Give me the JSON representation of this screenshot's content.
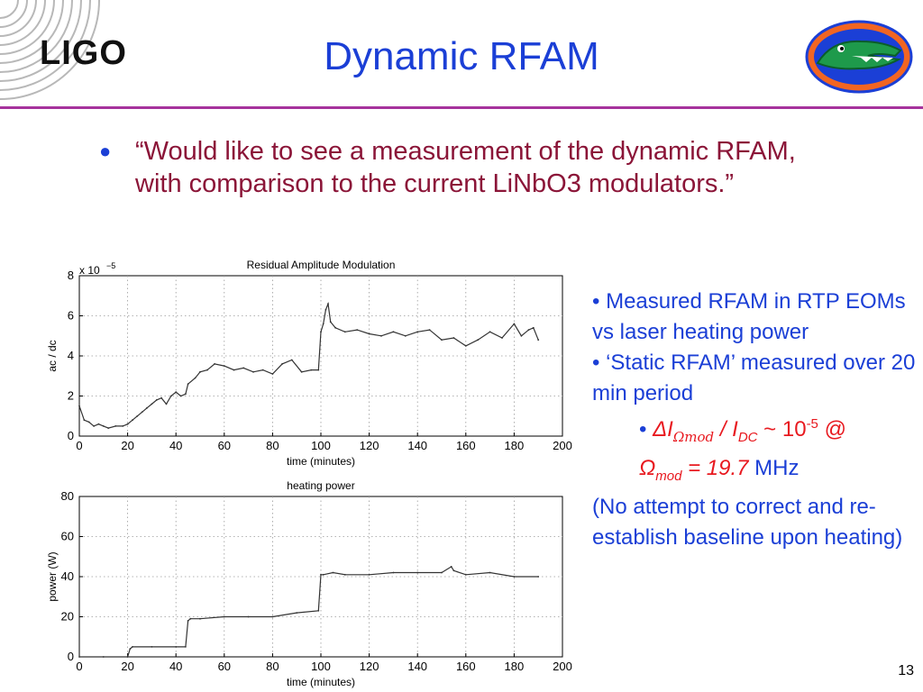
{
  "header": {
    "logo_text": "LIGO",
    "title": "Dynamic RFAM",
    "logo_icon": "ligo-rings-icon",
    "mascot_icon": "gator-logo-icon"
  },
  "main_bullet": "“Would like to see a measurement of the dynamic RFAM, with comparison to the current LiNbO3 modulators.”",
  "side_notes": {
    "item1": "• Measured RFAM in RTP EOMs vs laser heating power",
    "item2": "• ‘Static RFAM’ measured over 20 min period",
    "formula": {
      "bullet": "•",
      "delta_i": "ΔI",
      "omega_mod_sub": "Ωmod",
      "slash": " / ",
      "i": "I",
      "dc_sub": "DC",
      "tilde_ten": " ~ 10",
      "exp": "-5",
      "at": " @",
      "omega": "Ω",
      "mod_sub": "mod",
      "equals": " = 19.7",
      "mhz": " MHz"
    },
    "item3": "(No attempt to correct and re-establish baseline upon heating)"
  },
  "page_number": "13",
  "colors": {
    "title_blue": "#1b3fd6",
    "bullet_maroon": "#8b1538",
    "rule_purple": "#a6339d",
    "formula_red": "#e8191f"
  },
  "chart_data": [
    {
      "type": "line",
      "title": "Residual Amplitude Modulation",
      "xlabel": "time (minutes)",
      "ylabel": "ac / dc",
      "multiplier": "x 10",
      "multiplier_exp": "−5",
      "xlim": [
        0,
        200
      ],
      "ylim": [
        0,
        8
      ],
      "xticks": [
        "0",
        "20",
        "40",
        "60",
        "80",
        "100",
        "120",
        "140",
        "160",
        "180",
        "200"
      ],
      "yticks": [
        "0",
        "2",
        "4",
        "6",
        "8"
      ],
      "grid": true,
      "x": [
        0,
        2,
        4,
        6,
        8,
        10,
        12,
        15,
        18,
        20,
        22,
        24,
        26,
        28,
        30,
        32,
        34,
        36,
        38,
        40,
        42,
        44,
        45,
        48,
        50,
        53,
        56,
        60,
        64,
        68,
        72,
        76,
        80,
        84,
        88,
        92,
        96,
        99,
        100,
        101,
        102,
        103,
        104,
        106,
        110,
        115,
        120,
        125,
        130,
        135,
        140,
        145,
        150,
        155,
        160,
        165,
        170,
        175,
        180,
        183,
        186,
        188,
        190
      ],
      "y": [
        1.5,
        0.8,
        0.7,
        0.5,
        0.6,
        0.5,
        0.4,
        0.5,
        0.5,
        0.6,
        0.8,
        1.0,
        1.2,
        1.4,
        1.6,
        1.8,
        1.9,
        1.6,
        2.0,
        2.2,
        2.0,
        2.1,
        2.6,
        2.9,
        3.2,
        3.3,
        3.6,
        3.5,
        3.3,
        3.4,
        3.2,
        3.3,
        3.1,
        3.6,
        3.8,
        3.2,
        3.3,
        3.3,
        5.2,
        5.6,
        6.3,
        6.6,
        5.7,
        5.4,
        5.2,
        5.3,
        5.1,
        5.0,
        5.2,
        5.0,
        5.2,
        5.3,
        4.8,
        4.9,
        4.5,
        4.8,
        5.2,
        4.9,
        5.6,
        5.0,
        5.3,
        5.4,
        4.8
      ]
    },
    {
      "type": "line",
      "title": "heating power",
      "xlabel": "time (minutes)",
      "ylabel": "power (W)",
      "xlim": [
        0,
        200
      ],
      "ylim": [
        0,
        80
      ],
      "xticks": [
        "0",
        "20",
        "40",
        "60",
        "80",
        "100",
        "120",
        "140",
        "160",
        "180",
        "200"
      ],
      "yticks": [
        "0",
        "20",
        "40",
        "60",
        "80"
      ],
      "grid": true,
      "x": [
        0,
        10,
        20,
        21,
        22,
        30,
        40,
        44,
        45,
        46,
        50,
        60,
        70,
        80,
        90,
        99,
        100,
        101,
        105,
        110,
        120,
        130,
        140,
        150,
        154,
        155,
        160,
        170,
        180,
        190
      ],
      "y": [
        0,
        0,
        0,
        4,
        5,
        5,
        5,
        5,
        18,
        19,
        19,
        20,
        20,
        20,
        22,
        23,
        41,
        41,
        42,
        41,
        41,
        42,
        42,
        42,
        45,
        43,
        41,
        42,
        40,
        40
      ]
    }
  ]
}
